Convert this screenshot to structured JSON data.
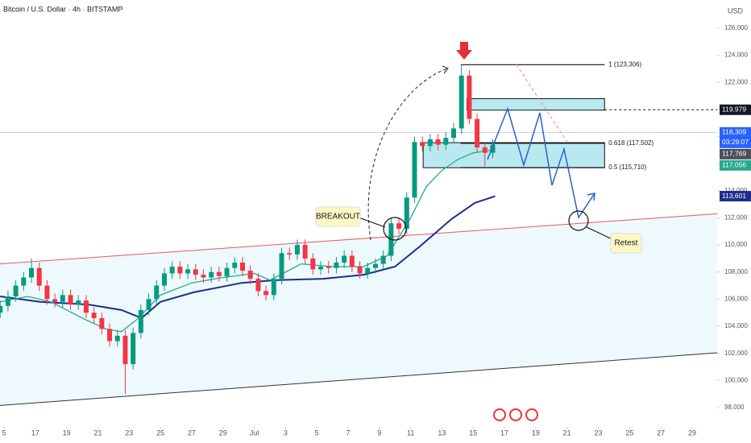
{
  "chart_data": {
    "type": "candlestick",
    "title": "Bitcoin / U.S. Dollar · 4h · BITSTAMP",
    "currency": "USD",
    "up_color": "#089981",
    "down_color": "#f23645",
    "xlim": [
      -0.26,
      45.6
    ],
    "ylim": [
      96570,
      128080
    ],
    "yticks": [
      {
        "value": 98000,
        "label": "98,000"
      },
      {
        "value": 100000,
        "label": "100,000"
      },
      {
        "value": 102000,
        "label": "102,000"
      },
      {
        "value": 104000,
        "label": "104,000"
      },
      {
        "value": 106000,
        "label": "106,000"
      },
      {
        "value": 108000,
        "label": "108,000"
      },
      {
        "value": 110000,
        "label": "110,000"
      },
      {
        "value": 112000,
        "label": "112,000"
      },
      {
        "value": 114000,
        "label": "114,000"
      },
      {
        "value": 116000,
        "label": "116,000"
      },
      {
        "value": 118000,
        "label": "118,000"
      },
      {
        "value": 120000,
        "label": "120,000"
      },
      {
        "value": 122000,
        "label": "122,000"
      },
      {
        "value": 124000,
        "label": "124,000"
      },
      {
        "value": 126000,
        "label": "126,000"
      }
    ],
    "xticks": [
      {
        "value": 0,
        "label": "5"
      },
      {
        "value": 2,
        "label": "17"
      },
      {
        "value": 4,
        "label": "19"
      },
      {
        "value": 6,
        "label": "21"
      },
      {
        "value": 8,
        "label": "23"
      },
      {
        "value": 10,
        "label": "25"
      },
      {
        "value": 12,
        "label": "27"
      },
      {
        "value": 14,
        "label": "29"
      },
      {
        "value": 16,
        "label": "Jul"
      },
      {
        "value": 18,
        "label": "3"
      },
      {
        "value": 20,
        "label": "5"
      },
      {
        "value": 22,
        "label": "7"
      },
      {
        "value": 24,
        "label": "9"
      },
      {
        "value": 26,
        "label": "11"
      },
      {
        "value": 28,
        "label": "13"
      },
      {
        "value": 30,
        "label": "15"
      },
      {
        "value": 32,
        "label": "17"
      },
      {
        "value": 34,
        "label": "19"
      },
      {
        "value": 36,
        "label": "21"
      },
      {
        "value": 38,
        "label": "23"
      },
      {
        "value": 40,
        "label": "25"
      },
      {
        "value": 42,
        "label": "27"
      },
      {
        "value": 44,
        "label": "29"
      }
    ],
    "x": [
      -0.25,
      0.25,
      0.75,
      1.25,
      1.75,
      2.25,
      2.75,
      3.25,
      3.75,
      4.25,
      4.75,
      5.25,
      5.75,
      6.25,
      6.75,
      7.25,
      7.75,
      8.25,
      8.75,
      9.25,
      9.75,
      10.25,
      10.75,
      11.25,
      11.75,
      12.25,
      12.75,
      13.25,
      13.75,
      14.25,
      14.75,
      15.25,
      15.75,
      16.25,
      16.75,
      17.25,
      17.75,
      18.25,
      18.75,
      19.25,
      19.75,
      20.25,
      20.75,
      21.25,
      21.75,
      22.25,
      22.75,
      23.25,
      23.75,
      24.25,
      24.75,
      25.25,
      25.75,
      26.25,
      26.75,
      27.25,
      27.75,
      28.25,
      28.75,
      29.25,
      29.75,
      30.25,
      30.75,
      31.25
    ],
    "open": [
      105000,
      105500,
      106200,
      107000,
      107600,
      108300,
      107000,
      106000,
      105800,
      106300,
      105600,
      105900,
      105000,
      104600,
      103800,
      102900,
      103300,
      101200,
      103500,
      105200,
      106000,
      107000,
      107900,
      108400,
      107900,
      108200,
      107800,
      107600,
      108000,
      107700,
      108300,
      108700,
      108100,
      107500,
      106600,
      106300,
      107500,
      109400,
      109300,
      110000,
      109000,
      108200,
      108400,
      108300,
      108700,
      109200,
      108400,
      107900,
      108300,
      108600,
      109200,
      111600,
      111200,
      113500,
      117600,
      117300,
      117800,
      117400,
      117900,
      118600,
      122500,
      119300,
      117200,
      116800
    ],
    "high": [
      105900,
      106600,
      107400,
      108000,
      109000,
      108700,
      107400,
      106400,
      106700,
      106700,
      106300,
      106300,
      105400,
      105000,
      104200,
      103700,
      103700,
      103900,
      105600,
      106400,
      107400,
      108300,
      108800,
      108800,
      108600,
      108600,
      108200,
      108400,
      108400,
      108700,
      109100,
      109100,
      108500,
      107900,
      107000,
      107900,
      109800,
      109800,
      110400,
      110400,
      109400,
      108800,
      108800,
      109100,
      109600,
      109600,
      108800,
      108700,
      109000,
      109600,
      112000,
      112000,
      113900,
      118000,
      118000,
      118200,
      118200,
      118300,
      119000,
      123306,
      122900,
      119700,
      117600,
      117800
    ],
    "low": [
      104600,
      105100,
      105800,
      106600,
      107200,
      106600,
      105600,
      105400,
      105400,
      105200,
      105200,
      104600,
      104200,
      103400,
      102500,
      102500,
      99000,
      100800,
      103100,
      104800,
      105600,
      106600,
      107500,
      107500,
      107500,
      107400,
      107200,
      107200,
      107300,
      107300,
      107900,
      107700,
      107100,
      106200,
      105900,
      105900,
      107100,
      108900,
      108900,
      108600,
      107800,
      107800,
      107900,
      107900,
      108300,
      108000,
      107500,
      107500,
      107900,
      108200,
      108800,
      110800,
      110800,
      113100,
      116900,
      116900,
      117000,
      117000,
      117500,
      118200,
      118900,
      116800,
      115800,
      116400
    ],
    "close": [
      105500,
      106200,
      107000,
      107600,
      108300,
      107000,
      106000,
      105800,
      106300,
      105600,
      105900,
      105000,
      104600,
      103800,
      102900,
      103300,
      101200,
      103500,
      105200,
      106000,
      107000,
      107900,
      108400,
      107900,
      108200,
      107800,
      107600,
      108000,
      107700,
      108300,
      108700,
      108100,
      107500,
      106600,
      106300,
      107500,
      109400,
      109300,
      110000,
      109000,
      108200,
      108400,
      108300,
      108700,
      109200,
      108400,
      107900,
      108300,
      108600,
      109200,
      111600,
      111200,
      113500,
      117600,
      117300,
      117800,
      117400,
      117900,
      118600,
      122500,
      119300,
      117200,
      116800,
      117400
    ],
    "moving_averages": [
      {
        "color": "#1f2d8c",
        "x": [
          -0.25,
          2.3,
          5.4,
          7.5,
          8.8,
          10,
          12.1,
          15.2,
          17.3,
          20.4,
          23,
          25,
          26.6,
          28.6,
          30.1,
          31.4
        ],
        "values": [
          106200,
          105800,
          105600,
          105200,
          104600,
          105800,
          106500,
          107200,
          107400,
          107500,
          107800,
          108400,
          109900,
          111900,
          113100,
          113600
        ]
      },
      {
        "color": "#26a98a",
        "x": [
          -0.25,
          1.5,
          3,
          5,
          6.5,
          7.5,
          8.5,
          10,
          12,
          14,
          16,
          17,
          19,
          21,
          23,
          24.5,
          26,
          27,
          28,
          29,
          30,
          31.2
        ],
        "values": [
          105800,
          106200,
          105800,
          104600,
          103800,
          103600,
          104500,
          106300,
          107200,
          107600,
          107900,
          107400,
          108600,
          108400,
          108400,
          109200,
          112000,
          114300,
          115500,
          116300,
          116800,
          117000
        ]
      }
    ],
    "trendlines": [
      {
        "color": "#f0555a",
        "x": [
          -0.26,
          45.6
        ],
        "values": [
          108600,
          112300
        ]
      },
      {
        "color": "#333333",
        "x": [
          -0.26,
          45.6
        ],
        "values": [
          98150,
          102040
        ]
      }
    ],
    "zones": [
      {
        "color": "#a8e4ec",
        "x": [
          29.6,
          38.4
        ],
        "values": [
          120800,
          119950
        ]
      },
      {
        "color": "#a8e4ec",
        "x": [
          26.8,
          38.4
        ],
        "values": [
          117550,
          115700
        ]
      }
    ],
    "fib_levels": [
      {
        "label": "1 (123,306)",
        "value": 123306
      },
      {
        "label": "0.618 (117,502)",
        "value": 117502
      },
      {
        "label": "0.5 (115,710)",
        "value": 115710
      }
    ],
    "price_labels": [
      {
        "value": 119979,
        "label": "119,979",
        "color": "#131722"
      },
      {
        "value": 118309,
        "label": "118,309",
        "color": "#2962ff",
        "timer": "03:29:07"
      },
      {
        "value": 117769,
        "label": "117,769",
        "color": "#4a4f5a"
      },
      {
        "value": 117056,
        "label": "117,056",
        "color": "#26a98a"
      },
      {
        "value": 113601,
        "label": "113,601",
        "color": "#1f2d8c"
      }
    ],
    "annotations": {
      "breakout": "BREAKOUT",
      "retest": "Retest"
    }
  }
}
